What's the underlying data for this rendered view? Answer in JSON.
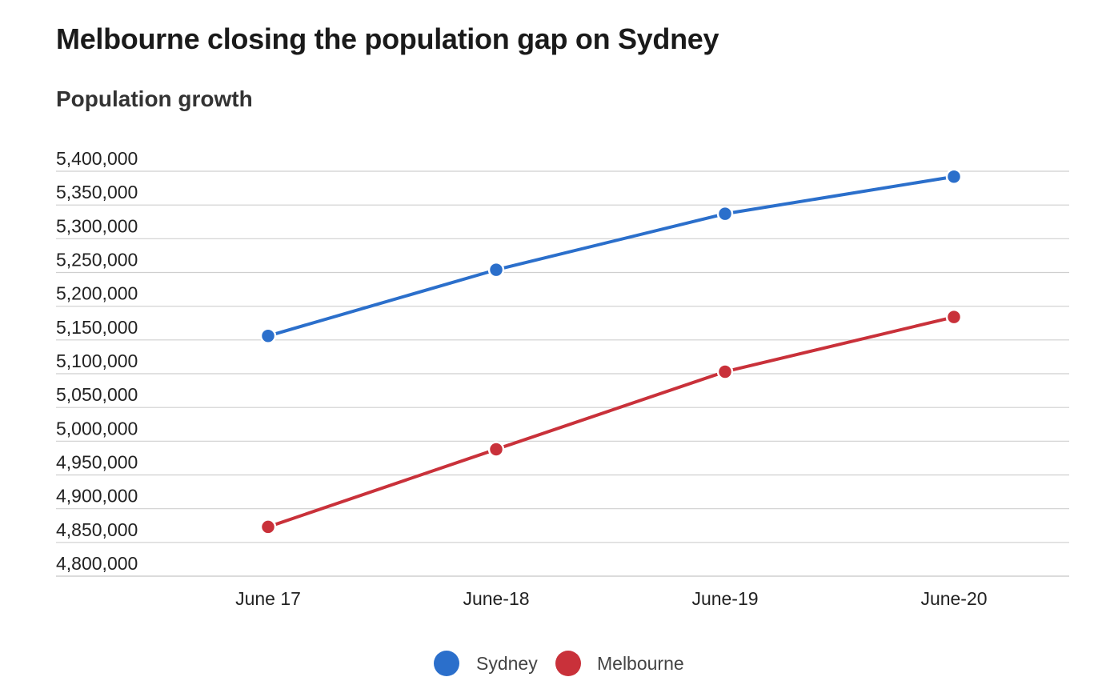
{
  "chart_data": {
    "type": "line",
    "title": "Melbourne closing the population gap on Sydney",
    "subtitle": "Population growth",
    "xlabel": "",
    "ylabel": "",
    "categories": [
      "June 17",
      "June-18",
      "June-19",
      "June-20"
    ],
    "ylim": [
      4775000,
      5400000
    ],
    "yticks": [
      5400000,
      5350000,
      5300000,
      5250000,
      5200000,
      5150000,
      5100000,
      5050000,
      5000000,
      4950000,
      4900000,
      4850000,
      4800000
    ],
    "ytick_labels": [
      "5,400,000",
      "5,350,000",
      "5,300,000",
      "5,250,000",
      "5,200,000",
      "5,150,000",
      "5,100,000",
      "5,050,000",
      "5,000,000",
      "4,950,000",
      "4,900,000",
      "4,850,000",
      "4,800,000"
    ],
    "grid": true,
    "legend_position": "bottom-center",
    "series": [
      {
        "name": "Sydney",
        "color": "#2b6fcb",
        "values": [
          5131000,
          5229000,
          5312000,
          5367000
        ]
      },
      {
        "name": "Melbourne",
        "color": "#c9313a",
        "values": [
          4848000,
          4963000,
          5078000,
          5159000
        ]
      }
    ]
  }
}
